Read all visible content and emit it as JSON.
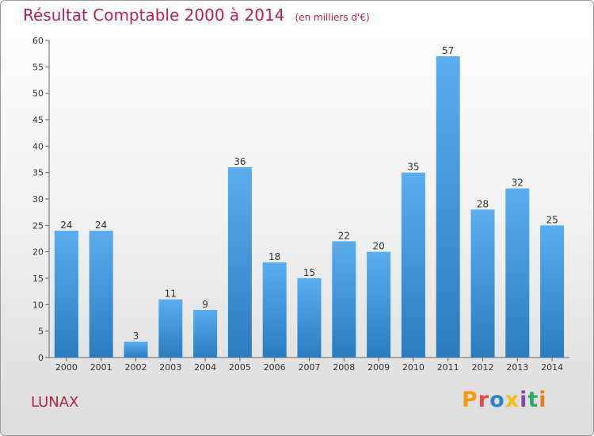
{
  "header": {
    "title": "Résultat Comptable 2000 à 2014",
    "subtitle": "(en milliers d'€)"
  },
  "footer": {
    "place": "LUNAX",
    "brand": "Proxiti",
    "brand_colors": [
      "#f39c12",
      "#e74c3c",
      "#2a84c6",
      "#f1c40f",
      "#8e44ad",
      "#27ae60",
      "#e67e22"
    ]
  },
  "colors": {
    "bar_top": "#5aaef0",
    "bar_bottom": "#2a7cc0",
    "text": "#333333",
    "title": "#b5224b"
  },
  "chart_data": {
    "type": "bar",
    "title": "Résultat Comptable 2000 à 2014",
    "subtitle": "(en milliers d'€)",
    "categories": [
      "2000",
      "2001",
      "2002",
      "2003",
      "2004",
      "2005",
      "2006",
      "2007",
      "2008",
      "2009",
      "2010",
      "2011",
      "2012",
      "2013",
      "2014"
    ],
    "values": [
      24,
      24,
      3,
      11,
      9,
      36,
      18,
      15,
      22,
      20,
      35,
      57,
      28,
      32,
      25
    ],
    "ylim": [
      0,
      60
    ],
    "yticks": [
      0,
      5,
      10,
      15,
      20,
      25,
      30,
      35,
      40,
      45,
      50,
      55,
      60
    ],
    "grid": false,
    "data_labels": true
  }
}
